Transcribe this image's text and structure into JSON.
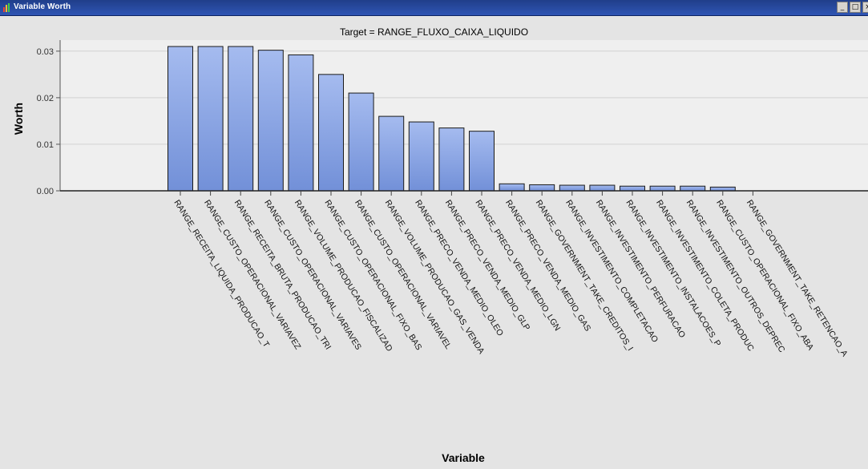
{
  "window": {
    "title": "Variable Worth",
    "controls": [
      "_",
      "□",
      "×"
    ]
  },
  "chart_data": {
    "type": "bar",
    "title": "Target = RANGE_FLUXO_CAIXA_LIQUIDO",
    "xlabel": "Variable",
    "ylabel": "Worth",
    "ylim": [
      0,
      0.031
    ],
    "yticks": [
      0.0,
      0.01,
      0.02,
      0.03
    ],
    "ytick_labels": [
      "0.00",
      "0.01",
      "0.02",
      "0.03"
    ],
    "grid": true,
    "legend": "none",
    "bar_color": "#8fa8e4",
    "categories": [
      "RANGE_RECEITA_LIQUIDA_PRODUCAO_T",
      "RANGE_CUSTO_OPERACIONAL_VARIAVEZ",
      "RANGE_RECEITA_BRUTA_PRODUCAO_TRI",
      "RANGE_CUSTO_OPERACIONAL_VARIAVES",
      "RANGE_VOLUME_PRODUCAO_FISCALIZAD",
      "RANGE_CUSTO_OPERACIONAL_FIXO_BAS",
      "RANGE_CUSTO_OPERACIONAL_VARIAVEL",
      "RANGE_VOLUME_PRODUCAO_GAS_VENDA",
      "RANGE_PRECO_VENDA_MEDIO_OLEO",
      "RANGE_PRECO_VENDA_MEDIO_GLP",
      "RANGE_PRECO_VENDA_MEDIO_LGN",
      "RANGE_PRECO_VENDA_MEDIO_GAS",
      "RANGE_GOVERNMENT_TAKE_CREDITOS_I",
      "RANGE_INVESTIMENTO_COMPLETACAO",
      "RANGE_INVESTIMENTO_PERFURACAO",
      "RANGE_INVESTIMENTO_INSTALACOES_P",
      "RANGE_INVESTIMENTO_COLETA_PRODUC",
      "RANGE_INVESTIMENTO_OUTROS_DEPREC",
      "RANGE_CUSTO_OPERACIONAL_FIXO_ABA",
      "RANGE_GOVERNMENT_TAKE_RETENCAO_A"
    ],
    "values": [
      0.031,
      0.031,
      0.031,
      0.0302,
      0.0292,
      0.025,
      0.021,
      0.016,
      0.0148,
      0.0135,
      0.0128,
      0.0015,
      0.0013,
      0.0012,
      0.0012,
      0.001,
      0.001,
      0.001,
      0.0008,
      0.0
    ]
  }
}
